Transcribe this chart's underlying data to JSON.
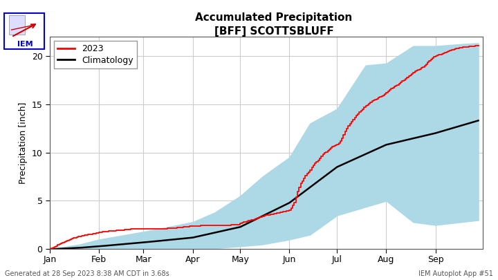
{
  "title_line1": "Accumulated Precipitation",
  "title_line2": "[BFF] SCOTTSBLUFF",
  "ylabel": "Precipitation [inch]",
  "footer_left": "Generated at 28 Sep 2023 8:38 AM CDT in 3.68s",
  "footer_right": "IEM Autoplot App #51",
  "ylim": [
    0,
    22
  ],
  "yticks": [
    0,
    5,
    10,
    15,
    20
  ],
  "legend_2023": "2023",
  "legend_climo": "Climatology",
  "climo_fill_color": "#add8e6",
  "line_2023_color": "#FF0000",
  "line_climo_color": "#000000",
  "bg_color": "#ffffff",
  "grid_color": "#cccccc",
  "month_ticks_days": [
    1,
    32,
    60,
    91,
    121,
    152,
    182,
    213,
    244
  ],
  "month_labels": [
    "Jan",
    "Feb",
    "Mar",
    "Apr",
    "May",
    "Jun",
    "Jul",
    "Aug",
    "Sep"
  ],
  "climo_mean_days": [
    1,
    20,
    32,
    60,
    91,
    121,
    152,
    182,
    213,
    244,
    271
  ],
  "climo_mean_vals": [
    0,
    0.15,
    0.3,
    0.7,
    1.2,
    2.3,
    4.8,
    8.5,
    10.8,
    12.0,
    13.3
  ],
  "climo_lower_days": [
    1,
    20,
    32,
    60,
    91,
    105,
    121,
    135,
    152,
    165,
    182,
    213,
    230,
    244,
    260,
    271
  ],
  "climo_lower_vals": [
    0,
    0.0,
    0.0,
    0.0,
    0.05,
    0.1,
    0.3,
    0.5,
    1.0,
    1.5,
    3.5,
    5.0,
    2.8,
    2.5,
    2.8,
    3.0
  ],
  "climo_upper_days": [
    1,
    20,
    32,
    60,
    91,
    105,
    121,
    135,
    152,
    165,
    182,
    200,
    213,
    230,
    244,
    260,
    271
  ],
  "climo_upper_vals": [
    0,
    0.5,
    1.0,
    1.8,
    2.8,
    3.8,
    5.5,
    7.5,
    9.5,
    13.0,
    14.5,
    19.0,
    19.2,
    21.0,
    21.0,
    21.2,
    21.3
  ],
  "line2023_days": [
    1,
    5,
    8,
    12,
    15,
    20,
    25,
    30,
    32,
    35,
    40,
    45,
    50,
    55,
    60,
    70,
    80,
    91,
    100,
    110,
    120,
    121,
    125,
    130,
    133,
    137,
    140,
    145,
    148,
    152,
    155,
    157,
    159,
    162,
    165,
    167,
    170,
    173,
    176,
    178,
    182,
    184,
    186,
    188,
    190,
    192,
    194,
    196,
    198,
    200,
    203,
    206,
    210,
    213,
    216,
    220,
    224,
    228,
    232,
    236,
    240,
    244,
    248,
    252,
    256,
    260,
    265,
    271
  ],
  "line2023_vals": [
    0,
    0.35,
    0.6,
    0.9,
    1.1,
    1.35,
    1.5,
    1.65,
    1.75,
    1.82,
    1.9,
    1.95,
    2.05,
    2.1,
    2.1,
    2.1,
    2.2,
    2.4,
    2.45,
    2.45,
    2.55,
    2.7,
    2.9,
    3.1,
    3.3,
    3.5,
    3.6,
    3.75,
    3.9,
    4.0,
    4.8,
    6.0,
    6.8,
    7.6,
    8.2,
    8.7,
    9.2,
    9.8,
    10.2,
    10.5,
    10.8,
    11.2,
    11.8,
    12.5,
    13.0,
    13.4,
    13.8,
    14.2,
    14.5,
    14.8,
    15.2,
    15.5,
    15.8,
    16.2,
    16.6,
    17.0,
    17.5,
    18.0,
    18.5,
    18.8,
    19.5,
    20.0,
    20.2,
    20.5,
    20.7,
    20.85,
    20.95,
    21.05
  ]
}
